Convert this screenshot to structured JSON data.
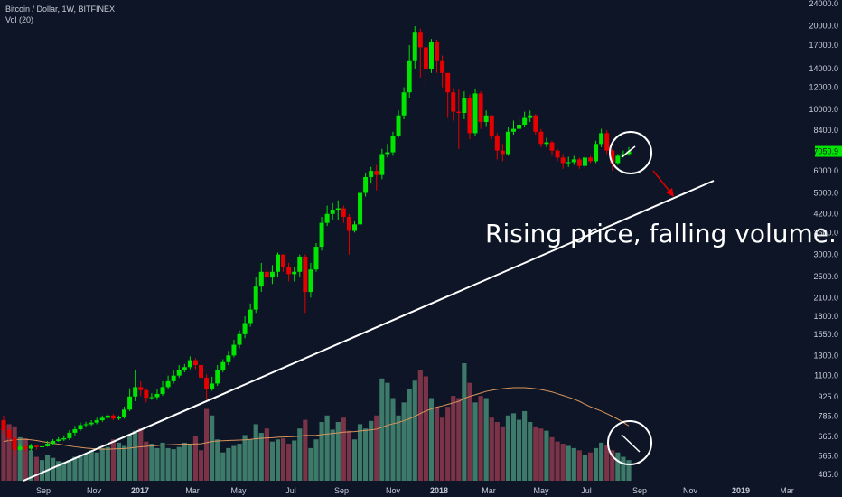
{
  "legend": {
    "symbol_line": "Bitcoin / Dollar, 1W, BITFINEX",
    "volume_line": "Vol (20)"
  },
  "annotation": {
    "text": "Rising price, falling volume."
  },
  "price_badge": {
    "value": "7050.9",
    "color": "#00e600"
  },
  "colors": {
    "background": "#0d1526",
    "up_candle": "#00e600",
    "down_candle": "#e60000",
    "up_volume": "#3d7a6a",
    "down_volume": "#7a3347",
    "ma_line": "#d9945c",
    "annotation": "#ffffff",
    "axis_text": "#c9ced8"
  },
  "chart_data": {
    "type": "candlestick",
    "price_axis": {
      "scale": "log",
      "ticks": [
        485.0,
        565.0,
        665.0,
        785.0,
        925.0,
        1100.0,
        1300.0,
        1550.0,
        1800.0,
        2100.0,
        2500.0,
        3000.0,
        3600.0,
        4200.0,
        5000.0,
        6000.0,
        7050.9,
        8400.0,
        10000.0,
        12000.0,
        14000.0,
        17000.0,
        20000.0,
        24000.0
      ],
      "tick_labels": [
        "485.0",
        "565.0",
        "665.0",
        "785.0",
        "925.0",
        "1100.0",
        "1300.0",
        "1550.0",
        "1800.0",
        "2100.0",
        "2500.0",
        "3000.0",
        "3600.0",
        "4200.0",
        "5000.0",
        "6000.0",
        "",
        "8400.0",
        "10000.0",
        "12000.0",
        "14000.0",
        "17000.0",
        "20000.0",
        "24000.0"
      ]
    },
    "time_axis": {
      "labels": [
        "Sep",
        "Nov",
        "2017",
        "Mar",
        "May",
        "Jul",
        "Sep",
        "Nov",
        "2018",
        "Mar",
        "May",
        "Jul",
        "Sep",
        "Nov",
        "2019",
        "Mar"
      ]
    },
    "volume_indicator": {
      "name": "Vol (20)",
      "ma_period": 20
    },
    "candles_close": [
      700,
      655,
      595,
      610,
      600,
      615,
      608,
      612,
      625,
      640,
      648,
      655,
      685,
      705,
      730,
      735,
      745,
      760,
      775,
      790,
      770,
      780,
      830,
      925,
      1000,
      975,
      915,
      920,
      945,
      1000,
      1050,
      1100,
      1150,
      1180,
      1250,
      1200,
      1080,
      985,
      1030,
      1150,
      1230,
      1300,
      1420,
      1550,
      1700,
      1900,
      2300,
      2600,
      2480,
      2600,
      3000,
      2700,
      2550,
      2600,
      2950,
      2200,
      2650,
      3200,
      3900,
      4200,
      4350,
      4400,
      4100,
      3650,
      3850,
      5000,
      5700,
      6000,
      5800,
      6900,
      7000,
      8000,
      9500,
      11500,
      15000,
      19000,
      16700,
      14000,
      17500,
      15000,
      13500,
      11500,
      9800,
      9700,
      11000,
      8200,
      11400,
      9000,
      9500,
      8000,
      7100,
      6900,
      8300,
      8500,
      8800,
      9300,
      9500,
      8300,
      7500,
      7600,
      7100,
      6700,
      6400,
      6450,
      6600,
      6250,
      6700,
      6500,
      7500,
      8200,
      7100,
      6400,
      6800,
      6900,
      7050.9
    ],
    "candles_open": [
      760,
      700,
      655,
      595,
      610,
      600,
      615,
      608,
      612,
      625,
      640,
      648,
      655,
      685,
      705,
      730,
      735,
      745,
      760,
      775,
      790,
      770,
      780,
      830,
      925,
      1000,
      975,
      915,
      920,
      945,
      1000,
      1050,
      1100,
      1150,
      1180,
      1250,
      1200,
      1080,
      985,
      1030,
      1150,
      1230,
      1300,
      1420,
      1550,
      1700,
      1900,
      2300,
      2600,
      2480,
      2600,
      3000,
      2700,
      2550,
      2600,
      2950,
      2200,
      2650,
      3200,
      3900,
      4200,
      4350,
      4400,
      4100,
      3650,
      3850,
      5000,
      5700,
      6000,
      5800,
      6900,
      7000,
      8000,
      9500,
      11500,
      15000,
      19000,
      16700,
      14000,
      17500,
      15000,
      13500,
      11500,
      9800,
      9700,
      11000,
      8200,
      11400,
      9000,
      9500,
      8000,
      7100,
      6900,
      8300,
      8500,
      8800,
      9300,
      9500,
      8300,
      7500,
      7600,
      7100,
      6700,
      6400,
      6450,
      6600,
      6250,
      6700,
      6500,
      7500,
      8200,
      7100,
      6400,
      6800,
      6900
    ],
    "candles_high": [
      790,
      720,
      665,
      625,
      620,
      625,
      620,
      620,
      640,
      650,
      660,
      670,
      700,
      725,
      745,
      750,
      760,
      775,
      790,
      800,
      800,
      790,
      850,
      990,
      1150,
      1050,
      990,
      950,
      980,
      1050,
      1100,
      1150,
      1200,
      1210,
      1290,
      1270,
      1220,
      1110,
      1090,
      1200,
      1260,
      1350,
      1480,
      1600,
      1800,
      2000,
      2500,
      2800,
      2750,
      2750,
      3050,
      3000,
      2800,
      2700,
      3000,
      3000,
      2800,
      3300,
      4100,
      4500,
      4600,
      4700,
      4500,
      4200,
      3950,
      5200,
      5900,
      6200,
      6300,
      7200,
      7500,
      8300,
      9900,
      12000,
      17000,
      19900,
      19500,
      17200,
      17900,
      17800,
      15600,
      13500,
      11900,
      11800,
      11600,
      11300,
      11800,
      11600,
      9900,
      9500,
      8200,
      7500,
      8600,
      9100,
      9300,
      9800,
      9900,
      9600,
      8500,
      7900,
      7700,
      7200,
      6900,
      6750,
      6800,
      6700,
      6900,
      6800,
      7700,
      8500,
      8400,
      7200,
      6900,
      7100,
      7300
    ],
    "candles_low": [
      680,
      640,
      560,
      590,
      585,
      590,
      595,
      600,
      610,
      620,
      635,
      640,
      645,
      670,
      695,
      715,
      725,
      735,
      750,
      765,
      760,
      760,
      770,
      820,
      890,
      930,
      880,
      900,
      900,
      930,
      980,
      1030,
      1080,
      1130,
      1160,
      1160,
      1060,
      900,
      970,
      1010,
      1130,
      1200,
      1280,
      1380,
      1500,
      1650,
      1850,
      2200,
      2300,
      2350,
      2500,
      2600,
      2400,
      2400,
      2500,
      1850,
      2100,
      2600,
      3100,
      3800,
      4000,
      4000,
      3900,
      3000,
      3600,
      3800,
      4850,
      5400,
      5100,
      5600,
      6700,
      6800,
      7900,
      9200,
      11000,
      14000,
      13000,
      12000,
      13500,
      13500,
      12000,
      9300,
      9100,
      7200,
      9200,
      7800,
      8000,
      8500,
      8700,
      7800,
      6600,
      6500,
      6800,
      8100,
      8400,
      8600,
      9000,
      8100,
      7300,
      7300,
      6800,
      6500,
      6100,
      6200,
      6300,
      6100,
      6100,
      6400,
      6400,
      7300,
      6900,
      6000,
      6300,
      6700,
      6800
    ],
    "volume_bars": [
      240,
      260,
      250,
      200,
      195,
      140,
      110,
      95,
      120,
      105,
      90,
      85,
      95,
      110,
      115,
      125,
      140,
      130,
      150,
      155,
      190,
      175,
      160,
      210,
      230,
      240,
      180,
      170,
      150,
      175,
      150,
      145,
      155,
      175,
      165,
      205,
      140,
      330,
      300,
      190,
      130,
      150,
      160,
      170,
      210,
      190,
      260,
      220,
      240,
      180,
      190,
      195,
      170,
      185,
      240,
      280,
      150,
      190,
      270,
      300,
      235,
      270,
      290,
      230,
      190,
      260,
      240,
      275,
      300,
      470,
      450,
      380,
      300,
      360,
      420,
      460,
      510,
      480,
      380,
      340,
      290,
      340,
      390,
      380,
      540,
      450,
      360,
      390,
      380,
      290,
      270,
      250,
      300,
      310,
      280,
      320,
      270,
      250,
      240,
      230,
      200,
      180,
      170,
      160,
      150,
      140,
      120,
      130,
      150,
      175,
      165,
      140,
      130,
      110,
      95
    ],
    "volume_ma": [
      180,
      185,
      188,
      190,
      190,
      188,
      185,
      180,
      176,
      172,
      168,
      164,
      160,
      156,
      153,
      150,
      148,
      146,
      145,
      145,
      146,
      147,
      148,
      150,
      153,
      156,
      158,
      160,
      162,
      164,
      165,
      166,
      167,
      168,
      168,
      169,
      170,
      175,
      180,
      183,
      184,
      185,
      186,
      187,
      188,
      190,
      193,
      195,
      197,
      198,
      200,
      201,
      202,
      203,
      205,
      208,
      208,
      209,
      212,
      215,
      217,
      220,
      223,
      225,
      226,
      229,
      231,
      234,
      237,
      246,
      255,
      262,
      268,
      276,
      285,
      296,
      309,
      321,
      330,
      338,
      344,
      351,
      358,
      365,
      378,
      388,
      395,
      403,
      411,
      416,
      420,
      423,
      426,
      428,
      428,
      428,
      426,
      423,
      419,
      414,
      408,
      400,
      392,
      384,
      375,
      365,
      352,
      340,
      330,
      320,
      308,
      296,
      283,
      268,
      252
    ],
    "annotations": {
      "trendline_label": "Rising price, falling volume."
    }
  }
}
